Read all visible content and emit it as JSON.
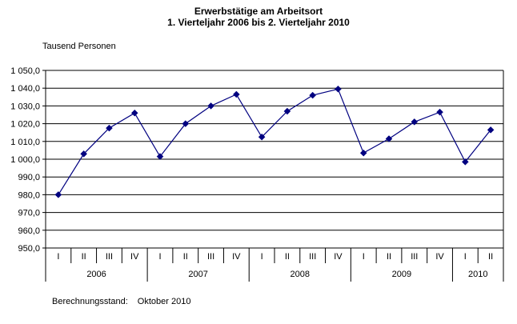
{
  "title": {
    "line1": "Erwerbstätige am Arbeitsort",
    "line2": "1. Vierteljahr 2006 bis 2. Vierteljahr 2010"
  },
  "unit_label": "Tausend Personen",
  "footer": {
    "label": "Berechnungsstand:",
    "value": "Oktober 2010"
  },
  "colors": {
    "series": "#000080",
    "grid": "#000000",
    "text": "#000000",
    "background": "#ffffff"
  },
  "chart_data": {
    "type": "line",
    "title": "Erwerbstätige am Arbeitsort",
    "subtitle": "1. Vierteljahr 2006 bis 2. Vierteljahr 2010",
    "ylabel": "Tausend Personen",
    "xlabel": "",
    "ylim": [
      950,
      1050
    ],
    "y_tick_step": 10,
    "y_tick_labels": [
      "950,0",
      "960,0",
      "970,0",
      "980,0",
      "990,0",
      "1 000,0",
      "1 010,0",
      "1 020,0",
      "1 030,0",
      "1 040,0",
      "1 050,0"
    ],
    "grid": true,
    "legend": false,
    "marker": "diamond",
    "line_color": "#000080",
    "x_groups": [
      {
        "year": "2006",
        "quarters": [
          "I",
          "II",
          "III",
          "IV"
        ]
      },
      {
        "year": "2007",
        "quarters": [
          "I",
          "II",
          "III",
          "IV"
        ]
      },
      {
        "year": "2008",
        "quarters": [
          "I",
          "II",
          "III",
          "IV"
        ]
      },
      {
        "year": "2009",
        "quarters": [
          "I",
          "II",
          "III",
          "IV"
        ]
      },
      {
        "year": "2010",
        "quarters": [
          "I",
          "II"
        ]
      }
    ],
    "series": [
      {
        "name": "Erwerbstätige am Arbeitsort (Tausend Personen)",
        "values": [
          980.0,
          1003.0,
          1017.5,
          1026.0,
          1001.5,
          1020.0,
          1030.0,
          1036.5,
          1012.5,
          1027.0,
          1036.0,
          1039.5,
          1003.5,
          1011.5,
          1021.0,
          1026.5,
          998.5,
          1016.5
        ]
      }
    ]
  }
}
